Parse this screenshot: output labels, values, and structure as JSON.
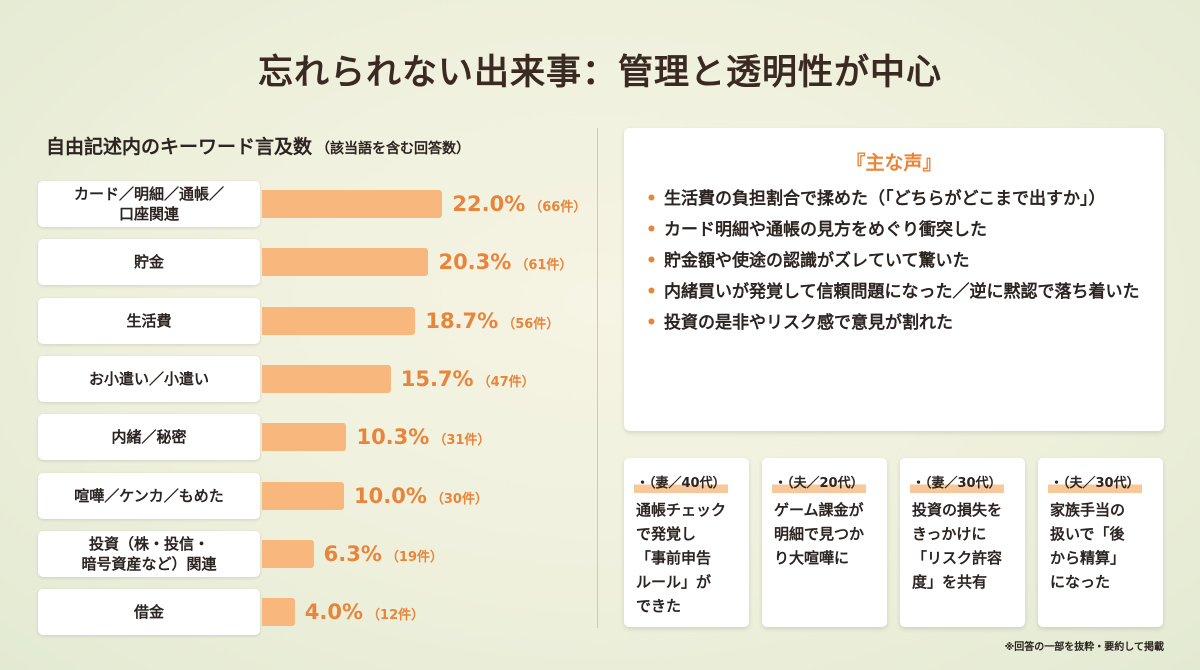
{
  "title": "忘れられない出来事：管理と透明性が中心",
  "chart_heading": "自由記述内のキーワード言及数",
  "chart_subheading": "（該当語を含む回答数）",
  "chart_data": {
    "type": "bar",
    "orientation": "horizontal",
    "categories": [
      "カード／明細／通帳／\n口座関連",
      "貯金",
      "生活費",
      "お小遣い／小遣い",
      "内緒／秘密",
      "喧嘩／ケンカ／もめた",
      "投資（株・投信・\n暗号資産など）関連",
      "借金"
    ],
    "values": [
      22.0,
      20.3,
      18.7,
      15.7,
      10.3,
      10.0,
      6.3,
      4.0
    ],
    "value_labels": [
      "22.0%",
      "20.3%",
      "18.7%",
      "15.7%",
      "10.3%",
      "10.0%",
      "6.3%",
      "4.0%"
    ],
    "counts": [
      "（66件）",
      "（61件）",
      "（56件）",
      "（47件）",
      "（31件）",
      "（30件）",
      "（19件）",
      "（12件）"
    ],
    "unit": "%",
    "color": "#f7b77d",
    "label_color": "#e8853a"
  },
  "voices": {
    "title": "『主な声』",
    "items": [
      "生活費の負担割合で揉めた（「どちらがどこまで出すか」）",
      "カード明細や通帳の見方をめぐり衝突した",
      "貯金額や使途の認識がズレていて驚いた",
      "内緒買いが発覚して信頼問題になった／逆に黙認で落ち着いた",
      "投資の是非やリスク感で意見が割れた"
    ]
  },
  "cards": [
    {
      "head": "・（妻／40代）",
      "text": "通帳チェック\nで発覚し\n「事前申告\nルール」が\nできた"
    },
    {
      "head": "・（夫／20代）",
      "text": "ゲーム課金が\n明細で見つか\nり大喧嘩に"
    },
    {
      "head": "・（妻／30代）",
      "text": "投資の損失を\nきっかけに\n「リスク許容\n度」を共有"
    },
    {
      "head": "・（夫／30代）",
      "text": "家族手当の\n扱いで「後\nから精算」\nになった"
    }
  ],
  "footnote": "※回答の一部を抜粋・要約して掲載",
  "colors": {
    "accent": "#e8853a",
    "bar": "#f7b77d",
    "text": "#2b2420"
  }
}
